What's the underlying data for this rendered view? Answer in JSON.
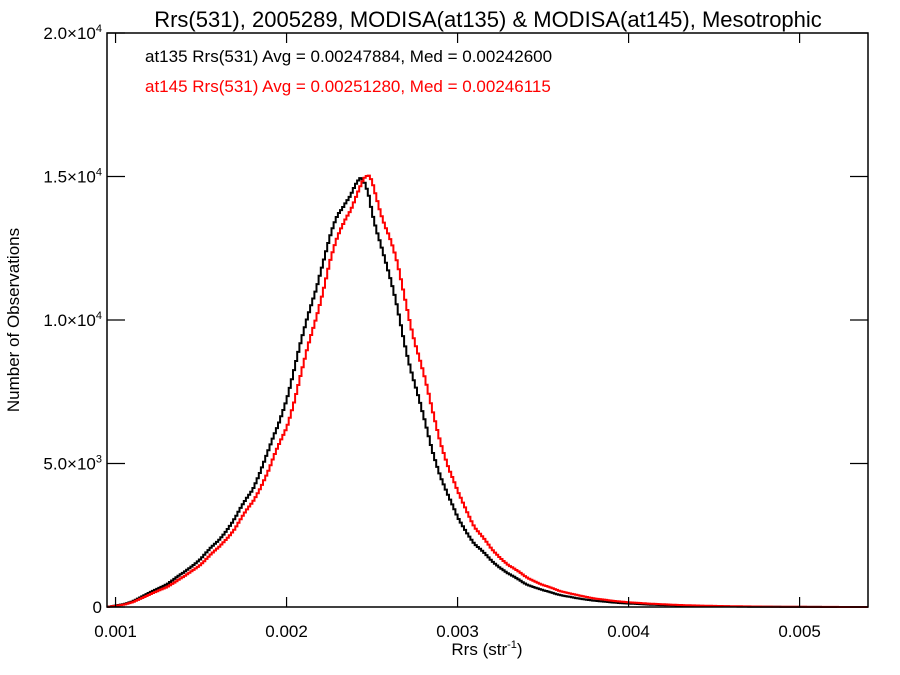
{
  "chart_data": {
    "type": "histogram",
    "title": "Rrs(531), 2005289, MODISA(at135) & MODISA(at145), Mesotrophic",
    "xlabel_main": "Rrs (str",
    "xlabel_sup": "-1",
    "xlabel_close": ")",
    "ylabel": "Number of Observations",
    "xlim": [
      0.00095,
      0.0054
    ],
    "ylim": [
      0,
      20000
    ],
    "x_ticks": [
      {
        "value": 0.001,
        "label": "0.001"
      },
      {
        "value": 0.002,
        "label": "0.002"
      },
      {
        "value": 0.003,
        "label": "0.003"
      },
      {
        "value": 0.004,
        "label": "0.004"
      },
      {
        "value": 0.005,
        "label": "0.005"
      }
    ],
    "y_ticks": [
      {
        "value": 0,
        "mant": "0",
        "exp": ""
      },
      {
        "value": 5000,
        "mant": "5.0×10",
        "exp": "3"
      },
      {
        "value": 10000,
        "mant": "1.0×10",
        "exp": "4"
      },
      {
        "value": 15000,
        "mant": "1.5×10",
        "exp": "4"
      },
      {
        "value": 20000,
        "mant": "2.0×10",
        "exp": "4"
      }
    ],
    "annotations": [
      {
        "text": "at135 Rrs(531) Avg = 0.00247884, Med = 0.00242600",
        "color": "#000000"
      },
      {
        "text": "at145 Rrs(531) Avg = 0.00251280, Med = 0.00246115",
        "color": "#ff0000"
      }
    ],
    "series": [
      {
        "color": "#000000",
        "x": [
          0.00095,
          0.00105,
          0.0011,
          0.0012,
          0.0013,
          0.0014,
          0.0015,
          0.0016,
          0.0017,
          0.0018,
          0.0019,
          0.00195,
          0.002,
          0.00205,
          0.0021,
          0.00215,
          0.0022,
          0.00225,
          0.0023,
          0.00235,
          0.0024,
          0.00243,
          0.00245,
          0.00248,
          0.0025,
          0.00255,
          0.0026,
          0.00265,
          0.0027,
          0.00275,
          0.0028,
          0.00285,
          0.0029,
          0.00295,
          0.003,
          0.0031,
          0.0032,
          0.0033,
          0.0034,
          0.0035,
          0.0036,
          0.0037,
          0.0038,
          0.0039,
          0.004,
          0.0041,
          0.0042,
          0.0043,
          0.0044,
          0.0045,
          0.0046,
          0.0047,
          0.0048,
          0.0049,
          0.005,
          0.0052,
          0.0054
        ],
        "values": [
          0,
          100,
          200,
          500,
          800,
          1200,
          1700,
          2300,
          3100,
          4100,
          5500,
          6300,
          7300,
          8400,
          9500,
          10700,
          11800,
          12700,
          13600,
          14300,
          14700,
          14800,
          14700,
          14300,
          13800,
          12800,
          11500,
          10300,
          9000,
          7800,
          6600,
          5500,
          4600,
          3800,
          3100,
          2200,
          1600,
          1150,
          800,
          580,
          420,
          300,
          220,
          160,
          120,
          90,
          65,
          50,
          35,
          25,
          18,
          12,
          8,
          5,
          3,
          1,
          0
        ]
      },
      {
        "color": "#ff0000",
        "x": [
          0.00095,
          0.00105,
          0.0011,
          0.0012,
          0.0013,
          0.0014,
          0.0015,
          0.0016,
          0.0017,
          0.0018,
          0.0019,
          0.002,
          0.00205,
          0.0021,
          0.00215,
          0.0022,
          0.00225,
          0.0023,
          0.00235,
          0.0024,
          0.00245,
          0.00248,
          0.0025,
          0.00253,
          0.00255,
          0.0026,
          0.00265,
          0.0027,
          0.00275,
          0.0028,
          0.00285,
          0.0029,
          0.00295,
          0.003,
          0.0031,
          0.0032,
          0.0033,
          0.0034,
          0.0035,
          0.0036,
          0.0037,
          0.0038,
          0.0039,
          0.004,
          0.0041,
          0.0042,
          0.0043,
          0.0044,
          0.0045,
          0.0046,
          0.0047,
          0.0048,
          0.0049,
          0.005,
          0.0052,
          0.0054
        ],
        "values": [
          0,
          80,
          170,
          430,
          700,
          1050,
          1500,
          2050,
          2750,
          3650,
          4800,
          6300,
          7300,
          8400,
          9600,
          10800,
          11900,
          12800,
          13700,
          14300,
          14750,
          14900,
          14800,
          14300,
          13900,
          12900,
          11800,
          10600,
          9300,
          8100,
          6900,
          5800,
          4800,
          4000,
          2800,
          2000,
          1450,
          1050,
          760,
          560,
          410,
          300,
          220,
          165,
          125,
          95,
          70,
          52,
          38,
          28,
          20,
          14,
          9,
          6,
          2,
          0
        ]
      }
    ]
  }
}
